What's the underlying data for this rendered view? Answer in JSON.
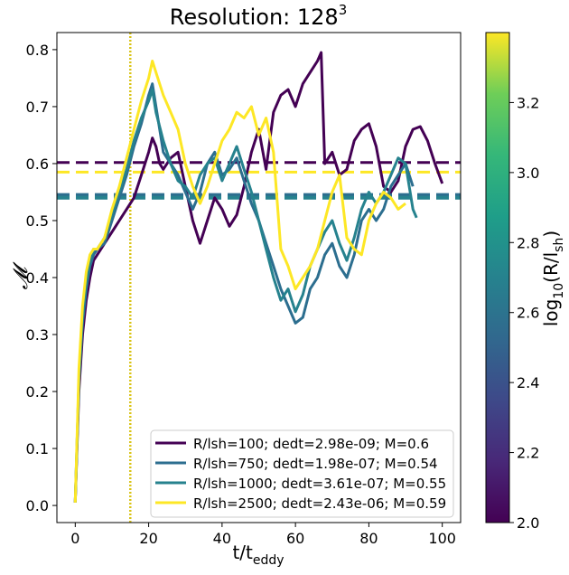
{
  "chart_data": {
    "type": "line",
    "title_main": "Resolution: 128",
    "title_sup": "3",
    "xlabel_main": "t/t",
    "xlabel_sub": "eddy",
    "ylabel": "𝓜",
    "xlim": [
      -5,
      105
    ],
    "ylim": [
      -0.03,
      0.83
    ],
    "xticks": [
      0,
      20,
      40,
      60,
      80,
      100
    ],
    "yticks": [
      0.0,
      0.1,
      0.2,
      0.3,
      0.4,
      0.5,
      0.6,
      0.7,
      0.8
    ],
    "vline_x": 15,
    "colorbar": {
      "label_main": "log",
      "label_sub": "10",
      "label_rest": "(R/l",
      "label_rest_sub": "sh",
      "label_close": ")",
      "range": [
        2.0,
        3.4
      ],
      "ticks": [
        2.0,
        2.2,
        2.4,
        2.6,
        2.8,
        3.0,
        3.2
      ],
      "tick_labels": [
        "2.0",
        "2.2",
        "2.4",
        "2.6",
        "2.8",
        "3.0",
        "3.2"
      ]
    },
    "legend_position": "lower-right",
    "series": [
      {
        "name": "R/lsh=100; dedt=2.98e-09; M=0.6",
        "color": "#440154",
        "mean": 0.602,
        "x": [
          0,
          1,
          2,
          3,
          4,
          5,
          6,
          8,
          10,
          12,
          14,
          16,
          18,
          20,
          21,
          22,
          23,
          24,
          26,
          28,
          30,
          32,
          34,
          36,
          38,
          40,
          42,
          44,
          46,
          48,
          50,
          52,
          54,
          56,
          58,
          60,
          62,
          64,
          66,
          67,
          68,
          70,
          72,
          74,
          76,
          78,
          80,
          82,
          84,
          86,
          88,
          90,
          92,
          94,
          96,
          98,
          100
        ],
        "y": [
          0.005,
          0.2,
          0.3,
          0.36,
          0.4,
          0.43,
          0.44,
          0.46,
          0.48,
          0.5,
          0.52,
          0.54,
          0.58,
          0.62,
          0.645,
          0.63,
          0.6,
          0.59,
          0.61,
          0.62,
          0.56,
          0.5,
          0.46,
          0.5,
          0.54,
          0.52,
          0.49,
          0.51,
          0.56,
          0.62,
          0.66,
          0.59,
          0.69,
          0.72,
          0.73,
          0.7,
          0.74,
          0.76,
          0.78,
          0.795,
          0.6,
          0.62,
          0.58,
          0.59,
          0.64,
          0.66,
          0.67,
          0.63,
          0.56,
          0.55,
          0.57,
          0.63,
          0.66,
          0.665,
          0.64,
          0.6,
          0.565
        ]
      },
      {
        "name": "R/lsh=750; dedt=1.98e-07; M=0.54",
        "color": "#2c6e8f",
        "mean": 0.545,
        "x": [
          0,
          1,
          2,
          3,
          4,
          5,
          6,
          8,
          10,
          12,
          14,
          16,
          18,
          20,
          21,
          22,
          23,
          24,
          26,
          28,
          30,
          32,
          34,
          36,
          38,
          40,
          42,
          44,
          46,
          48,
          50,
          52,
          54,
          56,
          58,
          60,
          62,
          64,
          66,
          68,
          70,
          72,
          74,
          76,
          78,
          80,
          82,
          84,
          86,
          88,
          90,
          92
        ],
        "y": [
          0.005,
          0.22,
          0.32,
          0.38,
          0.42,
          0.44,
          0.45,
          0.46,
          0.5,
          0.54,
          0.58,
          0.63,
          0.67,
          0.72,
          0.74,
          0.7,
          0.66,
          0.62,
          0.6,
          0.58,
          0.55,
          0.52,
          0.55,
          0.6,
          0.62,
          0.58,
          0.59,
          0.61,
          0.57,
          0.53,
          0.5,
          0.46,
          0.42,
          0.38,
          0.35,
          0.32,
          0.33,
          0.38,
          0.4,
          0.44,
          0.46,
          0.42,
          0.4,
          0.44,
          0.5,
          0.52,
          0.5,
          0.52,
          0.56,
          0.58,
          0.6,
          0.56
        ]
      },
      {
        "name": "R/lsh=1000; dedt=3.61e-07; M=0.55",
        "color": "#26828e",
        "mean": 0.54,
        "x": [
          0,
          1,
          2,
          3,
          4,
          5,
          6,
          8,
          10,
          12,
          14,
          16,
          18,
          20,
          21,
          22,
          24,
          26,
          28,
          30,
          32,
          34,
          36,
          38,
          40,
          42,
          44,
          46,
          48,
          50,
          52,
          54,
          56,
          58,
          60,
          62,
          64,
          66,
          68,
          70,
          72,
          74,
          76,
          78,
          80,
          82,
          84,
          86,
          88,
          90,
          92,
          93
        ],
        "y": [
          0.005,
          0.22,
          0.33,
          0.39,
          0.43,
          0.45,
          0.45,
          0.47,
          0.51,
          0.55,
          0.59,
          0.64,
          0.68,
          0.71,
          0.73,
          0.69,
          0.64,
          0.6,
          0.57,
          0.56,
          0.54,
          0.58,
          0.6,
          0.61,
          0.57,
          0.6,
          0.63,
          0.59,
          0.55,
          0.5,
          0.45,
          0.4,
          0.36,
          0.38,
          0.34,
          0.37,
          0.42,
          0.45,
          0.48,
          0.5,
          0.46,
          0.43,
          0.47,
          0.52,
          0.55,
          0.53,
          0.55,
          0.58,
          0.61,
          0.6,
          0.52,
          0.505
        ]
      },
      {
        "name": "R/lsh=2500; dedt=2.43e-06; M=0.59",
        "color": "#fde725",
        "mean": 0.585,
        "x": [
          0,
          1,
          2,
          3,
          4,
          5,
          6,
          8,
          10,
          12,
          14,
          16,
          18,
          20,
          21,
          22,
          24,
          26,
          28,
          30,
          32,
          34,
          36,
          38,
          40,
          42,
          44,
          46,
          48,
          50,
          52,
          54,
          56,
          58,
          60,
          62,
          64,
          66,
          68,
          70,
          72,
          74,
          76,
          78,
          80,
          82,
          84,
          86,
          88,
          90
        ],
        "y": [
          0.005,
          0.24,
          0.35,
          0.41,
          0.44,
          0.45,
          0.45,
          0.47,
          0.52,
          0.56,
          0.61,
          0.66,
          0.71,
          0.75,
          0.78,
          0.76,
          0.72,
          0.69,
          0.66,
          0.6,
          0.56,
          0.53,
          0.56,
          0.6,
          0.64,
          0.66,
          0.69,
          0.68,
          0.7,
          0.65,
          0.68,
          0.62,
          0.45,
          0.42,
          0.38,
          0.4,
          0.42,
          0.45,
          0.5,
          0.55,
          0.58,
          0.47,
          0.45,
          0.44,
          0.5,
          0.53,
          0.55,
          0.54,
          0.52,
          0.53
        ]
      }
    ]
  }
}
